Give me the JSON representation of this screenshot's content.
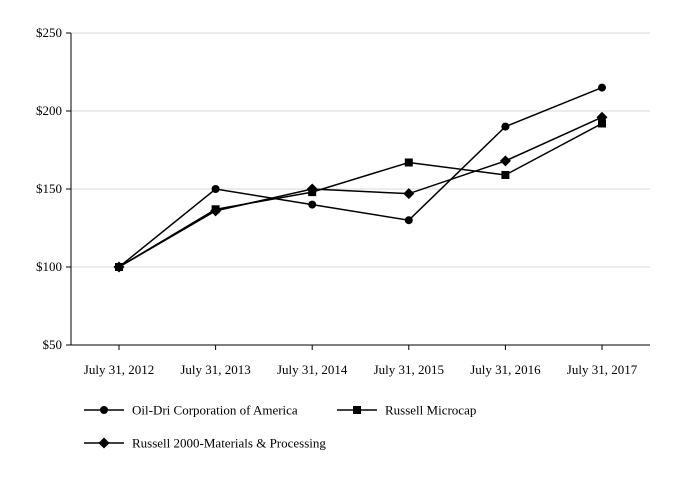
{
  "chart_data": {
    "type": "line",
    "categories": [
      "July 31, 2012",
      "July 31, 2013",
      "July 31, 2014",
      "July 31, 2015",
      "July 31, 2016",
      "July 31, 2017"
    ],
    "ylim": [
      50,
      250
    ],
    "yticks": [
      50,
      100,
      150,
      200,
      250
    ],
    "ytick_labels": [
      "$50",
      "$100",
      "$150",
      "$200",
      "$250"
    ],
    "grid": true,
    "legend_position": "bottom",
    "series": [
      {
        "name": "Oil-Dri Corporation of America",
        "marker": "circle",
        "values": [
          100,
          150,
          140,
          130,
          190,
          215
        ]
      },
      {
        "name": "Russell Microcap",
        "marker": "square",
        "values": [
          100,
          137,
          148,
          167,
          159,
          192
        ]
      },
      {
        "name": "Russell 2000-Materials & Processing",
        "marker": "diamond",
        "values": [
          100,
          136,
          150,
          147,
          168,
          196
        ]
      }
    ],
    "colors": {
      "line": "#000000",
      "grid": "#d9d9d9"
    }
  }
}
